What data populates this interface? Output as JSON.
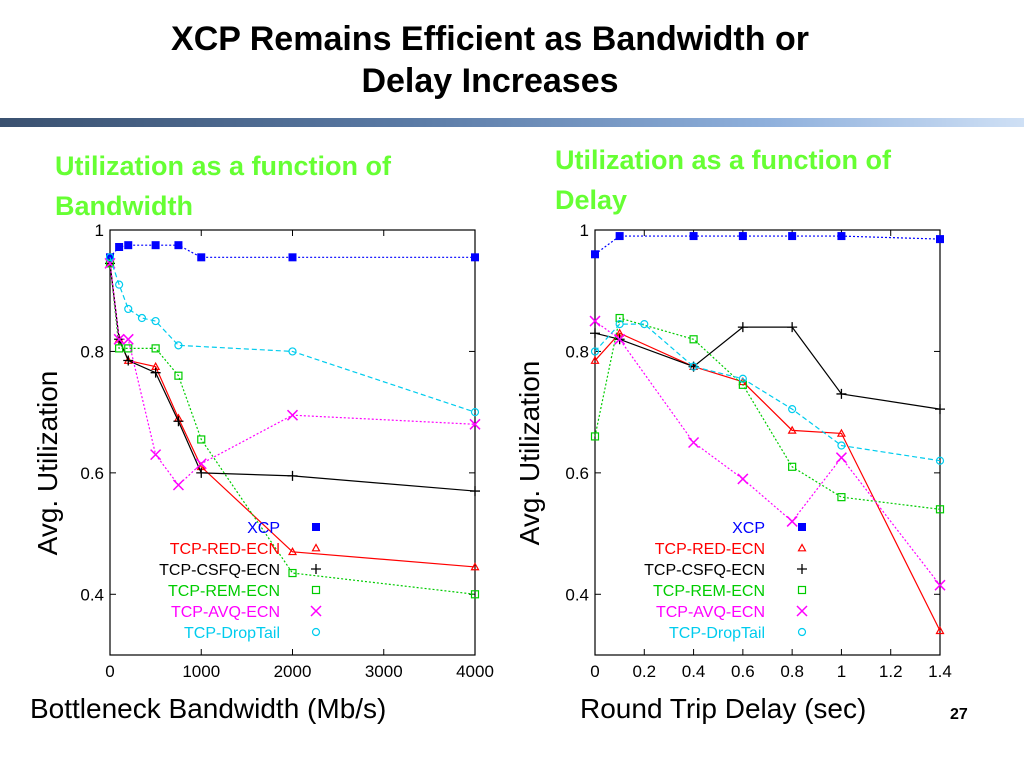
{
  "slide": {
    "title_line1": "XCP Remains Efficient as Bandwidth or",
    "title_line2": "Delay Increases",
    "left_subtitle": "Utilization as a function of Bandwidth",
    "right_subtitle": "Utilization as a function of Delay",
    "page_number": "27"
  },
  "chart_data": [
    {
      "type": "line",
      "xlabel": "Bottleneck Bandwidth (Mb/s)",
      "ylabel": "Avg. Utilization",
      "xlim": [
        0,
        4000
      ],
      "ylim": [
        0.3,
        1.0
      ],
      "x_ticks": [
        0,
        1000,
        2000,
        3000,
        4000
      ],
      "y_ticks": [
        0.4,
        0.6,
        0.8,
        1
      ],
      "legend_position": "bottom-center",
      "grid": false,
      "series": [
        {
          "name": "XCP",
          "color": "#0000ff",
          "marker": "filled-square",
          "line": "dotted",
          "points": [
            [
              0,
              0.955
            ],
            [
              100,
              0.972
            ],
            [
              200,
              0.975
            ],
            [
              500,
              0.975
            ],
            [
              750,
              0.975
            ],
            [
              1000,
              0.955
            ],
            [
              2000,
              0.955
            ],
            [
              4000,
              0.955
            ]
          ]
        },
        {
          "name": "TCP-RED-ECN",
          "color": "#ff0000",
          "marker": "triangle",
          "line": "solid",
          "points": [
            [
              0,
              0.945
            ],
            [
              100,
              0.82
            ],
            [
              200,
              0.785
            ],
            [
              500,
              0.775
            ],
            [
              750,
              0.69
            ],
            [
              1000,
              0.61
            ],
            [
              2000,
              0.47
            ],
            [
              4000,
              0.445
            ]
          ]
        },
        {
          "name": "TCP-CSFQ-ECN",
          "color": "#000000",
          "marker": "plus",
          "line": "solid",
          "points": [
            [
              0,
              0.945
            ],
            [
              100,
              0.82
            ],
            [
              200,
              0.785
            ],
            [
              500,
              0.765
            ],
            [
              750,
              0.685
            ],
            [
              1000,
              0.6
            ],
            [
              2000,
              0.595
            ],
            [
              4000,
              0.57
            ]
          ]
        },
        {
          "name": "TCP-REM-ECN",
          "color": "#00cc00",
          "marker": "square",
          "line": "dotted",
          "points": [
            [
              0,
              0.945
            ],
            [
              100,
              0.805
            ],
            [
              200,
              0.805
            ],
            [
              500,
              0.805
            ],
            [
              750,
              0.76
            ],
            [
              1000,
              0.655
            ],
            [
              2000,
              0.435
            ],
            [
              4000,
              0.4
            ]
          ]
        },
        {
          "name": "TCP-AVQ-ECN",
          "color": "#ff00ff",
          "marker": "x",
          "line": "dotted",
          "points": [
            [
              0,
              0.945
            ],
            [
              100,
              0.82
            ],
            [
              200,
              0.82
            ],
            [
              500,
              0.63
            ],
            [
              750,
              0.58
            ],
            [
              1000,
              0.615
            ],
            [
              2000,
              0.695
            ],
            [
              4000,
              0.68
            ]
          ]
        },
        {
          "name": "TCP-DropTail",
          "color": "#00ccee",
          "marker": "circle",
          "line": "dashed",
          "points": [
            [
              0,
              0.955
            ],
            [
              100,
              0.91
            ],
            [
              200,
              0.87
            ],
            [
              350,
              0.855
            ],
            [
              500,
              0.85
            ],
            [
              750,
              0.81
            ],
            [
              2000,
              0.8
            ],
            [
              4000,
              0.7
            ]
          ]
        }
      ]
    },
    {
      "type": "line",
      "xlabel": "Round Trip Delay (sec)",
      "ylabel": "Avg. Utilization",
      "xlim": [
        0,
        1.4
      ],
      "ylim": [
        0.3,
        1.0
      ],
      "x_ticks": [
        0,
        0.2,
        0.4,
        0.6,
        0.8,
        1,
        1.2,
        1.4
      ],
      "y_ticks": [
        0.4,
        0.6,
        0.8,
        1
      ],
      "legend_position": "bottom-center",
      "grid": false,
      "series": [
        {
          "name": "XCP",
          "color": "#0000ff",
          "marker": "filled-square",
          "line": "dotted",
          "points": [
            [
              0,
              0.96
            ],
            [
              0.1,
              0.99
            ],
            [
              0.4,
              0.99
            ],
            [
              0.6,
              0.99
            ],
            [
              0.8,
              0.99
            ],
            [
              1.0,
              0.99
            ],
            [
              1.4,
              0.985
            ]
          ]
        },
        {
          "name": "TCP-RED-ECN",
          "color": "#ff0000",
          "marker": "triangle",
          "line": "solid",
          "points": [
            [
              0,
              0.785
            ],
            [
              0.1,
              0.83
            ],
            [
              0.4,
              0.775
            ],
            [
              0.6,
              0.75
            ],
            [
              0.8,
              0.67
            ],
            [
              1.0,
              0.665
            ],
            [
              1.4,
              0.34
            ]
          ]
        },
        {
          "name": "TCP-CSFQ-ECN",
          "color": "#000000",
          "marker": "plus",
          "line": "solid",
          "points": [
            [
              0,
              0.83
            ],
            [
              0.1,
              0.82
            ],
            [
              0.4,
              0.775
            ],
            [
              0.6,
              0.84
            ],
            [
              0.8,
              0.84
            ],
            [
              1.0,
              0.73
            ],
            [
              1.4,
              0.705
            ]
          ]
        },
        {
          "name": "TCP-REM-ECN",
          "color": "#00cc00",
          "marker": "square",
          "line": "dotted",
          "points": [
            [
              0,
              0.66
            ],
            [
              0.1,
              0.855
            ],
            [
              0.4,
              0.82
            ],
            [
              0.6,
              0.745
            ],
            [
              0.8,
              0.61
            ],
            [
              1.0,
              0.56
            ],
            [
              1.4,
              0.54
            ]
          ]
        },
        {
          "name": "TCP-AVQ-ECN",
          "color": "#ff00ff",
          "marker": "x",
          "line": "dotted",
          "points": [
            [
              0,
              0.85
            ],
            [
              0.1,
              0.82
            ],
            [
              0.4,
              0.65
            ],
            [
              0.6,
              0.59
            ],
            [
              0.8,
              0.52
            ],
            [
              1.0,
              0.625
            ],
            [
              1.4,
              0.415
            ]
          ]
        },
        {
          "name": "TCP-DropTail",
          "color": "#00ccee",
          "marker": "circle",
          "line": "dashed",
          "points": [
            [
              0,
              0.8
            ],
            [
              0.1,
              0.845
            ],
            [
              0.2,
              0.845
            ],
            [
              0.4,
              0.775
            ],
            [
              0.6,
              0.755
            ],
            [
              0.8,
              0.705
            ],
            [
              1.0,
              0.645
            ],
            [
              1.4,
              0.62
            ]
          ]
        }
      ]
    }
  ]
}
